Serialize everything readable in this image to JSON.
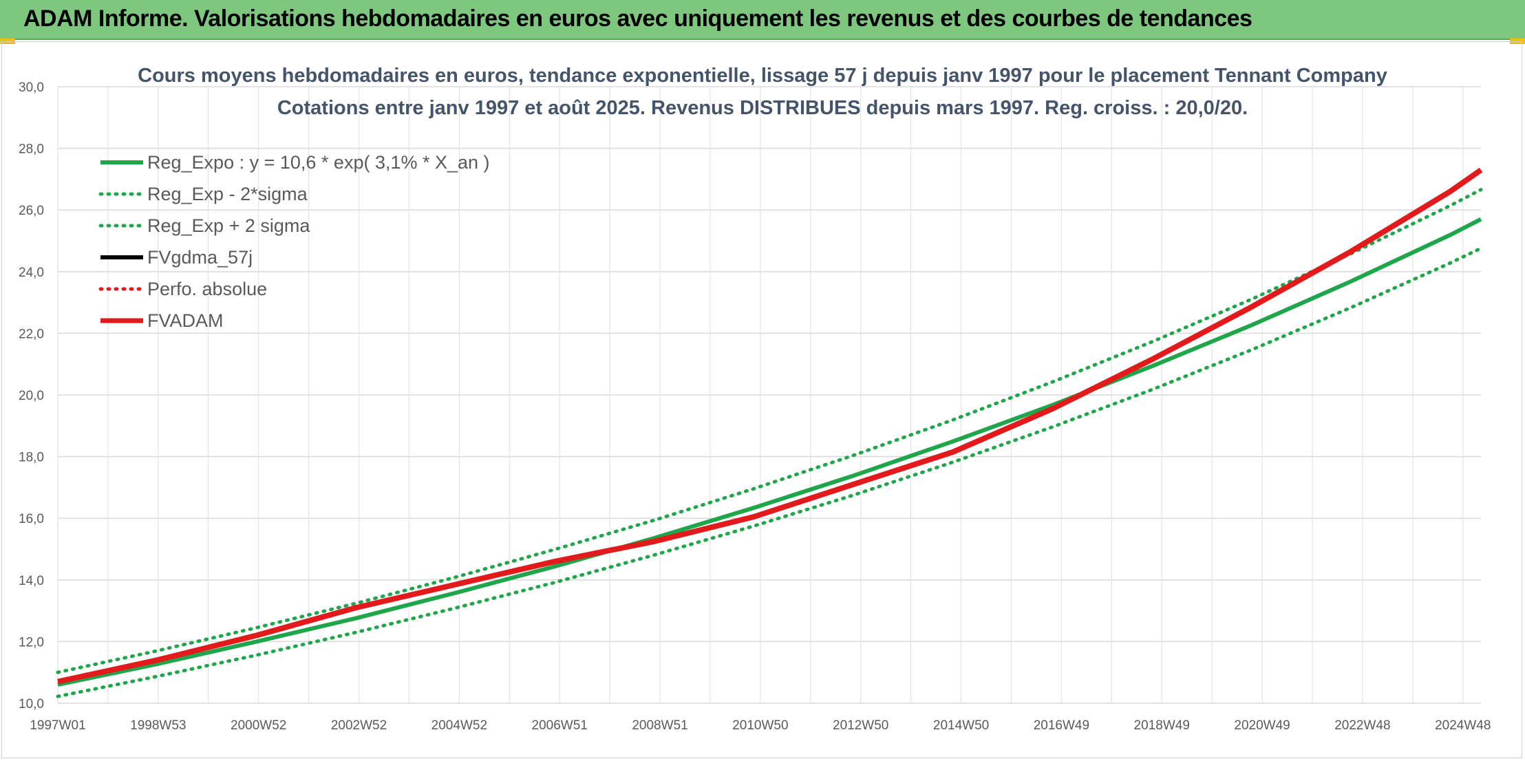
{
  "banner": {
    "title": "ADAM Informe. Valorisations hebdomadaires en euros avec uniquement les revenus et des courbes de tendances",
    "background": "#7ec77f"
  },
  "chart_data": {
    "type": "line",
    "title": "Cours moyens hebdomadaires en euros, tendance exponentielle, lissage 57 j depuis janv 1997 pour le placement Tennant Company",
    "subtitle": "Cotations entre janv 1997 et août 2025. Revenus DISTRIBUES depuis mars 1997. Reg. croiss. : 20,0/20.",
    "xlabel": "",
    "ylabel": "",
    "ylim": [
      10,
      30
    ],
    "yticks": [
      "10,0",
      "12,0",
      "14,0",
      "16,0",
      "18,0",
      "20,0",
      "22,0",
      "24,0",
      "26,0",
      "28,0",
      "30,0"
    ],
    "xlim": [
      1997.0,
      2025.62
    ],
    "xticks": [
      "1997W01",
      "1998W53",
      "2000W52",
      "2002W52",
      "2004W52",
      "2006W51",
      "2008W51",
      "2010W50",
      "2012W50",
      "2014W50",
      "2016W49",
      "2018W49",
      "2020W49",
      "2022W48",
      "2024W48"
    ],
    "grid": true,
    "legend_position": "top-left",
    "series": [
      {
        "name": "Reg_Expo : y = 10,6 * exp( 3,1% *  X_an )",
        "color": "#1fa64a",
        "style": "solid",
        "x": [
          1997,
          1999,
          2001,
          2003,
          2005,
          2007,
          2009,
          2011,
          2013,
          2015,
          2017,
          2019,
          2021,
          2023,
          2025,
          2025.62
        ],
        "values": [
          10.6,
          11.27,
          12.0,
          12.76,
          13.58,
          14.44,
          15.36,
          16.34,
          17.38,
          18.49,
          19.67,
          20.93,
          22.26,
          23.68,
          25.19,
          25.7
        ]
      },
      {
        "name": "Reg_Exp - 2*sigma",
        "color": "#1fa64a",
        "style": "dotted",
        "x": [
          1997,
          1999,
          2001,
          2003,
          2005,
          2007,
          2009,
          2011,
          2013,
          2015,
          2017,
          2019,
          2021,
          2023,
          2025,
          2025.62
        ],
        "values": [
          10.22,
          10.87,
          11.56,
          12.3,
          13.09,
          13.92,
          14.81,
          15.75,
          16.75,
          17.82,
          18.96,
          20.17,
          21.46,
          22.83,
          24.28,
          24.76
        ]
      },
      {
        "name": "Reg_Exp + 2 sigma",
        "color": "#1fa64a",
        "style": "dotted",
        "x": [
          1997,
          1999,
          2001,
          2003,
          2005,
          2007,
          2009,
          2011,
          2013,
          2015,
          2017,
          2019,
          2021,
          2023,
          2025,
          2025.62
        ],
        "values": [
          11.0,
          11.7,
          12.45,
          13.24,
          14.09,
          14.99,
          15.94,
          16.96,
          18.04,
          19.19,
          20.42,
          21.72,
          23.1,
          24.58,
          26.14,
          26.66
        ]
      },
      {
        "name": "FVgdma_57j",
        "color": "#000000",
        "style": "solid",
        "x": [],
        "values": []
      },
      {
        "name": "Perfo. absolue",
        "color": "#e31a1c",
        "style": "dotted",
        "x": [],
        "values": []
      },
      {
        "name": "FVADAM",
        "color": "#e31a1c",
        "style": "solid-thick",
        "x": [
          1997,
          1999,
          2001,
          2003,
          2005,
          2007,
          2009,
          2011,
          2013,
          2015,
          2017,
          2019,
          2021,
          2023,
          2025,
          2025.62
        ],
        "values": [
          10.7,
          11.4,
          12.2,
          13.1,
          13.85,
          14.6,
          15.25,
          16.05,
          17.1,
          18.15,
          19.55,
          21.15,
          22.85,
          24.65,
          26.6,
          27.3
        ]
      }
    ]
  }
}
